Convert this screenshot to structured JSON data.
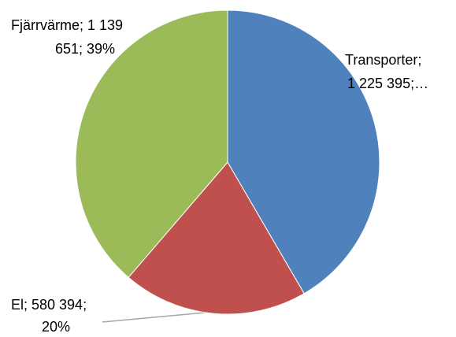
{
  "chart_data": {
    "type": "pie",
    "categories": [
      "Transporter",
      "El",
      "Fjärrvärme"
    ],
    "values": [
      1225395,
      580394,
      1139651
    ],
    "colors": [
      "#4f81bd",
      "#c0504d",
      "#9bbb59"
    ],
    "value_labels": [
      [
        "Transporter;",
        "1 225 395;…"
      ],
      [
        "El; 580 394;",
        "20%"
      ],
      [
        "Fjärrvärme; 1 139",
        "651; 39%"
      ]
    ]
  }
}
